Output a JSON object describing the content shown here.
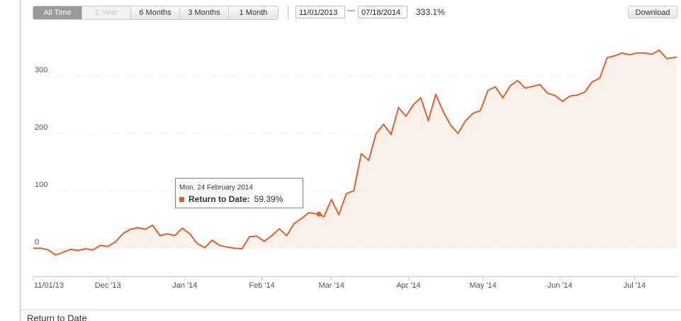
{
  "toolbar": {
    "ranges": [
      "All Time",
      "1 Year",
      "6 Months",
      "3 Months",
      "1 Month"
    ],
    "date_from": "11/01/2013",
    "date_to": "07/18/2014",
    "total_return": "333.1%",
    "download": "Download"
  },
  "section_title": "Return to Date",
  "tooltip": {
    "date": "Mon, 24 February 2014",
    "series_label": "Return to Date:",
    "value_label": "59.39%"
  },
  "chart_data": {
    "type": "area",
    "color": "#e2612b",
    "fill": "#fdf1ec",
    "grid": true,
    "x": [
      "2013-11-01",
      "2013-11-04",
      "2013-11-07",
      "2013-11-10",
      "2013-11-13",
      "2013-11-16",
      "2013-11-19",
      "2013-11-22",
      "2013-11-25",
      "2013-11-28",
      "2013-12-01",
      "2013-12-04",
      "2013-12-07",
      "2013-12-10",
      "2013-12-13",
      "2013-12-16",
      "2013-12-19",
      "2013-12-22",
      "2013-12-25",
      "2013-12-28",
      "2013-12-31",
      "2014-01-03",
      "2014-01-06",
      "2014-01-09",
      "2014-01-12",
      "2014-01-15",
      "2014-01-18",
      "2014-01-21",
      "2014-01-24",
      "2014-01-27",
      "2014-01-30",
      "2014-02-02",
      "2014-02-05",
      "2014-02-08",
      "2014-02-11",
      "2014-02-14",
      "2014-02-17",
      "2014-02-20",
      "2014-02-24",
      "2014-02-26",
      "2014-03-01",
      "2014-03-04",
      "2014-03-07",
      "2014-03-10",
      "2014-03-13",
      "2014-03-16",
      "2014-03-19",
      "2014-03-22",
      "2014-03-25",
      "2014-03-28",
      "2014-03-31",
      "2014-04-03",
      "2014-04-06",
      "2014-04-09",
      "2014-04-12",
      "2014-04-15",
      "2014-04-18",
      "2014-04-21",
      "2014-04-24",
      "2014-04-27",
      "2014-04-30",
      "2014-05-03",
      "2014-05-06",
      "2014-05-09",
      "2014-05-12",
      "2014-05-15",
      "2014-05-18",
      "2014-05-21",
      "2014-05-24",
      "2014-05-27",
      "2014-05-30",
      "2014-06-02",
      "2014-06-05",
      "2014-06-08",
      "2014-06-11",
      "2014-06-14",
      "2014-06-17",
      "2014-06-20",
      "2014-06-23",
      "2014-06-26",
      "2014-06-29",
      "2014-07-02",
      "2014-07-05",
      "2014-07-08",
      "2014-07-11",
      "2014-07-14",
      "2014-07-18"
    ],
    "values": [
      0,
      0,
      -3,
      -12,
      -7,
      -2,
      -4,
      -1,
      -3,
      5,
      3,
      11,
      25,
      33,
      36,
      33,
      40,
      22,
      25,
      22,
      35,
      25,
      8,
      1,
      14,
      5,
      2,
      0,
      -1,
      20,
      21,
      12,
      22,
      34,
      22,
      43,
      52,
      62,
      59.39,
      55,
      85,
      58,
      95,
      100,
      165,
      153,
      200,
      216,
      198,
      245,
      230,
      250,
      262,
      222,
      268,
      238,
      214,
      200,
      222,
      235,
      240,
      275,
      281,
      262,
      283,
      292,
      279,
      282,
      285,
      270,
      266,
      256,
      265,
      267,
      272,
      290,
      296,
      332,
      335,
      340,
      337,
      340,
      340,
      338,
      345,
      330,
      333.1
    ],
    "xlim": [
      "2013-11-01",
      "2014-07-18"
    ],
    "xticks": [
      {
        "value": "2013-11-01",
        "label": "11/01/13"
      },
      {
        "value": "2013-12-01",
        "label": "Dec '13"
      },
      {
        "value": "2014-01-01",
        "label": "Jan '14"
      },
      {
        "value": "2014-02-01",
        "label": "Feb '14"
      },
      {
        "value": "2014-03-01",
        "label": "Mar '14"
      },
      {
        "value": "2014-04-01",
        "label": "Apr '14"
      },
      {
        "value": "2014-05-01",
        "label": "May '14"
      },
      {
        "value": "2014-06-01",
        "label": "Jun '14"
      },
      {
        "value": "2014-07-01",
        "label": "Jul '14"
      }
    ],
    "ylim": [
      -49,
      383
    ],
    "yticks": [
      0,
      100,
      200,
      300
    ]
  }
}
